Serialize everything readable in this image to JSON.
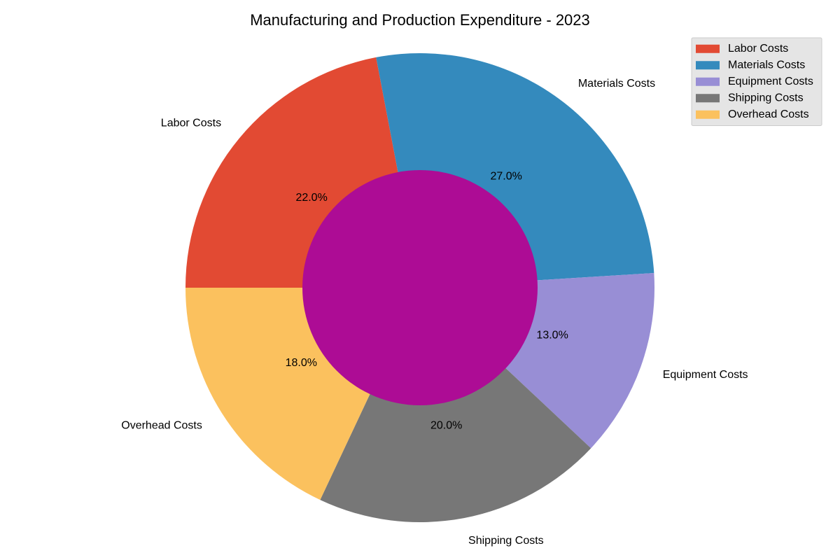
{
  "chart_data": {
    "type": "pie",
    "donut": true,
    "title": "Manufacturing and Production Expenditure - 2023",
    "categories": [
      "Labor Costs",
      "Materials Costs",
      "Equipment Costs",
      "Shipping Costs",
      "Overhead Costs"
    ],
    "values": [
      22.0,
      27.0,
      13.0,
      20.0,
      18.0
    ],
    "value_labels": [
      "22.0%",
      "27.0%",
      "13.0%",
      "20.0%",
      "18.0%"
    ],
    "colors": [
      "#E24A33",
      "#348ABD",
      "#988ED5",
      "#777777",
      "#FBC15E"
    ],
    "center_color": "#AD0C95",
    "start_angle_deg": 180,
    "direction": "clockwise",
    "legend": {
      "placement": "top-right",
      "entries": [
        "Labor Costs",
        "Materials Costs",
        "Equipment Costs",
        "Shipping Costs",
        "Overhead Costs"
      ]
    }
  }
}
